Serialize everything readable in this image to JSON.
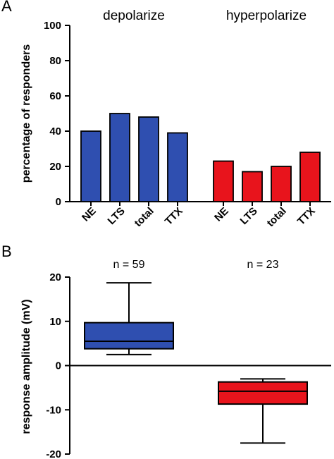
{
  "chart_data": [
    {
      "panel": "A",
      "type": "bar",
      "ylabel": "percentage of responders",
      "ylim": [
        0,
        100
      ],
      "yticks": [
        0,
        20,
        40,
        60,
        80,
        100
      ],
      "groups": [
        {
          "title": "depolarize",
          "color": "#2f4fb0",
          "categories": [
            "NE",
            "LTS",
            "total",
            "TTX"
          ],
          "values": [
            40,
            50,
            48,
            39
          ]
        },
        {
          "title": "hyperpolarize",
          "color": "#e8141c",
          "categories": [
            "NE",
            "LTS",
            "total",
            "TTX"
          ],
          "values": [
            23,
            17,
            20,
            28
          ]
        }
      ]
    },
    {
      "panel": "B",
      "type": "box",
      "ylabel": "response amplitude (mV)",
      "ylim": [
        -20,
        20
      ],
      "yticks": [
        -20,
        -10,
        0,
        10,
        20
      ],
      "boxes": [
        {
          "n_label": "n = 59",
          "color": "#2f4fb0",
          "min": 2.5,
          "q1": 3.8,
          "median": 5.5,
          "q3": 9.7,
          "max": 18.7
        },
        {
          "n_label": "n = 23",
          "color": "#e8141c",
          "min": -17.5,
          "q1": -8.7,
          "median": -5.8,
          "q3": -3.7,
          "max": -3.0
        }
      ]
    }
  ]
}
